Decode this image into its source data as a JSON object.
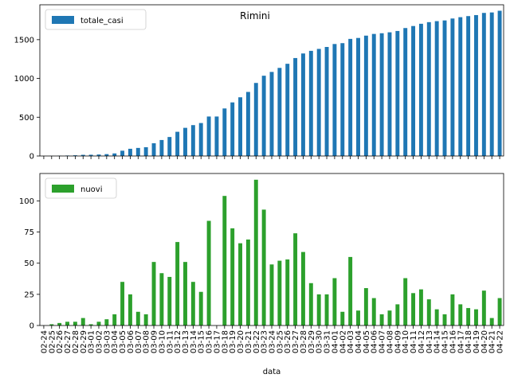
{
  "chart_data": {
    "type": "bar",
    "title": "Rimini",
    "xlabel": "data",
    "categories": [
      "02-24",
      "02-25",
      "02-26",
      "02-27",
      "02-28",
      "02-29",
      "03-01",
      "03-02",
      "03-03",
      "03-04",
      "03-05",
      "03-06",
      "03-07",
      "03-08",
      "03-09",
      "03-10",
      "03-11",
      "03-12",
      "03-13",
      "03-14",
      "03-15",
      "03-16",
      "03-17",
      "03-18",
      "03-19",
      "03-20",
      "03-21",
      "03-22",
      "03-23",
      "03-24",
      "03-25",
      "03-26",
      "03-27",
      "03-28",
      "03-29",
      "03-30",
      "03-31",
      "04-01",
      "04-02",
      "04-03",
      "04-04",
      "04-05",
      "04-06",
      "04-07",
      "04-08",
      "04-09",
      "04-10",
      "04-11",
      "04-12",
      "04-13",
      "04-14",
      "04-15",
      "04-16",
      "04-17",
      "04-18",
      "04-19",
      "04-20",
      "04-21",
      "04-22"
    ],
    "panels": [
      {
        "legend": "totale_casi",
        "legend_position": "top-left",
        "color": "#1f77b4",
        "ylim": [
          0,
          1950
        ],
        "yticks": [
          0,
          500,
          1000,
          1500
        ],
        "values": [
          0,
          1,
          3,
          6,
          9,
          15,
          16,
          19,
          24,
          33,
          68,
          93,
          104,
          113,
          164,
          206,
          245,
          312,
          363,
          398,
          425,
          509,
          509,
          613,
          691,
          757,
          826,
          942,
          1035,
          1084,
          1136,
          1189,
          1263,
          1322,
          1356,
          1381,
          1406,
          1444,
          1455,
          1510,
          1522,
          1552,
          1574,
          1583,
          1595,
          1612,
          1650,
          1676,
          1705,
          1726,
          1739,
          1748,
          1773,
          1790,
          1804,
          1817,
          1845,
          1851,
          1873
        ]
      },
      {
        "legend": "nuovi",
        "legend_position": "top-left",
        "color": "#2ca02c",
        "ylim": [
          0,
          122
        ],
        "yticks": [
          0,
          25,
          50,
          75,
          100
        ],
        "values": [
          0,
          1,
          2,
          3,
          3,
          6,
          1,
          3,
          5,
          9,
          35,
          25,
          11,
          9,
          51,
          42,
          39,
          67,
          51,
          35,
          27,
          84,
          0,
          104,
          78,
          66,
          69,
          117,
          93,
          49,
          52,
          53,
          74,
          59,
          34,
          25,
          25,
          38,
          11,
          55,
          12,
          30,
          22,
          9,
          12,
          17,
          38,
          26,
          29,
          21,
          13,
          9,
          25,
          17,
          14,
          13,
          28,
          6,
          22
        ]
      }
    ]
  }
}
